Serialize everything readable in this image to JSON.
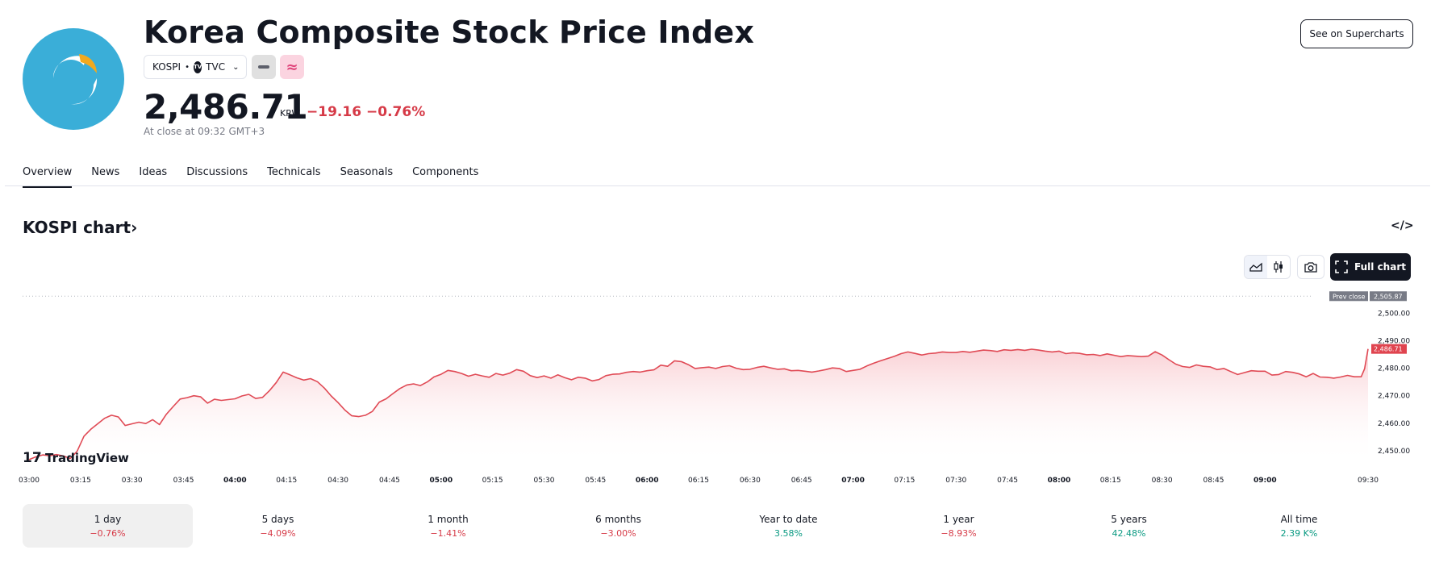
{
  "header": {
    "title": "Korea Composite Stock Price Index",
    "symbol": "KOSPI",
    "separator": "•",
    "exchange": "TVC",
    "exchange_badge": "TV",
    "pink_icon": "≈",
    "price": "2,486.71",
    "currency": "KRW",
    "change_abs": "−19.16",
    "change_pct": "−0.76%",
    "close_note": "At close at 09:32 GMT+3",
    "see_supercharts": "See on Supercharts"
  },
  "tabs": [
    {
      "label": "Overview",
      "active": true
    },
    {
      "label": "News"
    },
    {
      "label": "Ideas"
    },
    {
      "label": "Discussions"
    },
    {
      "label": "Technicals"
    },
    {
      "label": "Seasonals"
    },
    {
      "label": "Components"
    }
  ],
  "chart_section": {
    "title": "KOSPI chart",
    "title_arrow": "›",
    "embed_icon": "</>",
    "full_chart_label": "Full chart",
    "tradingview_label": "TradingView",
    "tradingview_mark": "17"
  },
  "colors": {
    "line": "#e04a55",
    "fill_top": "#f9c9ce",
    "prev_close_bg": "#787b86",
    "price_bg": "#e0444f"
  },
  "chart_data": {
    "type": "area",
    "title": "KOSPI chart",
    "ylim": [
      2445,
      2508
    ],
    "yticks": [
      "2,450.00",
      "2,460.00",
      "2,470.00",
      "2,480.00",
      "2,490.00",
      "2,500.00"
    ],
    "prev_close": 2505.87,
    "prev_close_label": "Prev close",
    "prev_close_text": "2,505.87",
    "last_price": 2486.71,
    "last_price_text": "2,486.71",
    "x_minutes_range": [
      0,
      390
    ],
    "xticks": [
      {
        "label": "03:00",
        "m": 0,
        "bold": false
      },
      {
        "label": "03:15",
        "m": 15,
        "bold": false
      },
      {
        "label": "03:30",
        "m": 30,
        "bold": false
      },
      {
        "label": "03:45",
        "m": 45,
        "bold": false
      },
      {
        "label": "04:00",
        "m": 60,
        "bold": true
      },
      {
        "label": "04:15",
        "m": 75,
        "bold": false
      },
      {
        "label": "04:30",
        "m": 90,
        "bold": false
      },
      {
        "label": "04:45",
        "m": 105,
        "bold": false
      },
      {
        "label": "05:00",
        "m": 120,
        "bold": true
      },
      {
        "label": "05:15",
        "m": 135,
        "bold": false
      },
      {
        "label": "05:30",
        "m": 150,
        "bold": false
      },
      {
        "label": "05:45",
        "m": 165,
        "bold": false
      },
      {
        "label": "06:00",
        "m": 180,
        "bold": true
      },
      {
        "label": "06:15",
        "m": 195,
        "bold": false
      },
      {
        "label": "06:30",
        "m": 210,
        "bold": false
      },
      {
        "label": "06:45",
        "m": 225,
        "bold": false
      },
      {
        "label": "07:00",
        "m": 240,
        "bold": true
      },
      {
        "label": "07:15",
        "m": 255,
        "bold": false
      },
      {
        "label": "07:30",
        "m": 270,
        "bold": false
      },
      {
        "label": "07:45",
        "m": 285,
        "bold": false
      },
      {
        "label": "08:00",
        "m": 300,
        "bold": true
      },
      {
        "label": "08:15",
        "m": 315,
        "bold": false
      },
      {
        "label": "08:30",
        "m": 330,
        "bold": false
      },
      {
        "label": "08:45",
        "m": 345,
        "bold": false
      },
      {
        "label": "09:00",
        "m": 360,
        "bold": true
      },
      {
        "label": "09:30",
        "m": 390,
        "bold": false
      }
    ],
    "points": [
      [
        0,
        2446.5
      ],
      [
        2,
        2447.5
      ],
      [
        4,
        2448.2
      ],
      [
        6,
        2447.9
      ],
      [
        8,
        2448.3
      ],
      [
        10,
        2447.8
      ],
      [
        12,
        2446.9
      ],
      [
        14,
        2449.5
      ],
      [
        16,
        2455.0
      ],
      [
        18,
        2457.5
      ],
      [
        20,
        2459.5
      ],
      [
        22,
        2461.5
      ],
      [
        24,
        2462.6
      ],
      [
        26,
        2462.0
      ],
      [
        28,
        2458.9
      ],
      [
        30,
        2459.5
      ],
      [
        32,
        2460.1
      ],
      [
        34,
        2459.6
      ],
      [
        36,
        2461.0
      ],
      [
        38,
        2459.2
      ],
      [
        40,
        2463.0
      ],
      [
        42,
        2465.8
      ],
      [
        44,
        2468.5
      ],
      [
        46,
        2469.0
      ],
      [
        48,
        2469.7
      ],
      [
        50,
        2469.3
      ],
      [
        52,
        2467.0
      ],
      [
        54,
        2468.4
      ],
      [
        56,
        2468.0
      ],
      [
        58,
        2468.3
      ],
      [
        60,
        2468.6
      ],
      [
        62,
        2469.6
      ],
      [
        64,
        2470.2
      ],
      [
        66,
        2468.7
      ],
      [
        68,
        2469.1
      ],
      [
        70,
        2471.5
      ],
      [
        72,
        2474.5
      ],
      [
        74,
        2478.3
      ],
      [
        76,
        2477.3
      ],
      [
        78,
        2476.2
      ],
      [
        80,
        2475.4
      ],
      [
        82,
        2475.9
      ],
      [
        84,
        2474.8
      ],
      [
        86,
        2472.5
      ],
      [
        88,
        2469.6
      ],
      [
        90,
        2467.2
      ],
      [
        92,
        2464.5
      ],
      [
        94,
        2462.4
      ],
      [
        96,
        2462.1
      ],
      [
        98,
        2462.6
      ],
      [
        100,
        2464.0
      ],
      [
        102,
        2467.4
      ],
      [
        104,
        2468.6
      ],
      [
        106,
        2470.5
      ],
      [
        108,
        2472.3
      ],
      [
        110,
        2473.6
      ],
      [
        112,
        2474.0
      ],
      [
        114,
        2473.4
      ],
      [
        116,
        2474.7
      ],
      [
        118,
        2476.6
      ],
      [
        120,
        2477.5
      ],
      [
        122,
        2478.9
      ],
      [
        124,
        2478.5
      ],
      [
        126,
        2477.8
      ],
      [
        128,
        2476.8
      ],
      [
        130,
        2477.5
      ],
      [
        132,
        2476.9
      ],
      [
        134,
        2476.4
      ],
      [
        136,
        2477.8
      ],
      [
        138,
        2477.2
      ],
      [
        140,
        2477.9
      ],
      [
        142,
        2479.2
      ],
      [
        144,
        2478.6
      ],
      [
        146,
        2477.0
      ],
      [
        148,
        2476.3
      ],
      [
        150,
        2476.9
      ],
      [
        152,
        2476.1
      ],
      [
        154,
        2477.3
      ],
      [
        156,
        2476.3
      ],
      [
        158,
        2475.5
      ],
      [
        160,
        2476.4
      ],
      [
        162,
        2476.1
      ],
      [
        164,
        2475.1
      ],
      [
        166,
        2475.6
      ],
      [
        168,
        2477.0
      ],
      [
        170,
        2477.5
      ],
      [
        172,
        2477.6
      ],
      [
        174,
        2478.2
      ],
      [
        176,
        2478.5
      ],
      [
        178,
        2478.3
      ],
      [
        180,
        2478.8
      ],
      [
        182,
        2479.1
      ],
      [
        184,
        2480.8
      ],
      [
        186,
        2480.4
      ],
      [
        188,
        2482.4
      ],
      [
        190,
        2482.1
      ],
      [
        192,
        2481.0
      ],
      [
        194,
        2479.6
      ],
      [
        196,
        2479.9
      ],
      [
        198,
        2480.1
      ],
      [
        200,
        2479.6
      ],
      [
        202,
        2480.3
      ],
      [
        204,
        2480.6
      ],
      [
        206,
        2479.7
      ],
      [
        208,
        2479.2
      ],
      [
        210,
        2479.3
      ],
      [
        212,
        2480.0
      ],
      [
        214,
        2480.4
      ],
      [
        216,
        2479.8
      ],
      [
        218,
        2479.3
      ],
      [
        220,
        2479.5
      ],
      [
        222,
        2478.8
      ],
      [
        224,
        2478.9
      ],
      [
        226,
        2478.6
      ],
      [
        228,
        2478.3
      ],
      [
        230,
        2478.7
      ],
      [
        232,
        2479.2
      ],
      [
        234,
        2479.8
      ],
      [
        236,
        2479.6
      ],
      [
        238,
        2478.5
      ],
      [
        240,
        2478.9
      ],
      [
        242,
        2479.3
      ],
      [
        244,
        2480.5
      ],
      [
        246,
        2481.5
      ],
      [
        248,
        2482.4
      ],
      [
        250,
        2483.2
      ],
      [
        252,
        2484.0
      ],
      [
        254,
        2485.0
      ],
      [
        256,
        2485.6
      ],
      [
        258,
        2485.1
      ],
      [
        260,
        2484.5
      ],
      [
        262,
        2485.0
      ],
      [
        264,
        2485.2
      ],
      [
        266,
        2485.6
      ],
      [
        268,
        2485.4
      ],
      [
        270,
        2485.4
      ],
      [
        272,
        2485.8
      ],
      [
        274,
        2485.5
      ],
      [
        276,
        2485.9
      ],
      [
        278,
        2486.3
      ],
      [
        280,
        2486.1
      ],
      [
        282,
        2485.8
      ],
      [
        284,
        2486.4
      ],
      [
        286,
        2486.2
      ],
      [
        288,
        2486.5
      ],
      [
        290,
        2486.2
      ],
      [
        292,
        2486.6
      ],
      [
        294,
        2486.3
      ],
      [
        296,
        2485.9
      ],
      [
        298,
        2485.6
      ],
      [
        300,
        2485.9
      ],
      [
        302,
        2485.0
      ],
      [
        304,
        2485.3
      ],
      [
        306,
        2485.1
      ],
      [
        308,
        2484.6
      ],
      [
        310,
        2484.7
      ],
      [
        312,
        2484.3
      ],
      [
        314,
        2484.9
      ],
      [
        316,
        2484.4
      ],
      [
        318,
        2483.9
      ],
      [
        320,
        2484.3
      ],
      [
        322,
        2484.1
      ],
      [
        324,
        2483.9
      ],
      [
        326,
        2484.1
      ],
      [
        328,
        2485.7
      ],
      [
        330,
        2484.5
      ],
      [
        332,
        2482.8
      ],
      [
        334,
        2481.2
      ],
      [
        336,
        2480.3
      ],
      [
        338,
        2480.0
      ],
      [
        340,
        2480.9
      ],
      [
        342,
        2480.4
      ],
      [
        344,
        2480.2
      ],
      [
        346,
        2479.2
      ],
      [
        348,
        2479.6
      ],
      [
        350,
        2478.5
      ],
      [
        352,
        2477.4
      ],
      [
        354,
        2478.1
      ],
      [
        356,
        2478.8
      ],
      [
        358,
        2478.6
      ],
      [
        360,
        2478.6
      ],
      [
        362,
        2477.2
      ],
      [
        364,
        2477.4
      ],
      [
        366,
        2478.5
      ],
      [
        368,
        2478.2
      ],
      [
        370,
        2477.6
      ],
      [
        372,
        2476.6
      ],
      [
        374,
        2477.8
      ],
      [
        376,
        2476.5
      ],
      [
        378,
        2476.4
      ],
      [
        380,
        2476.1
      ],
      [
        382,
        2476.5
      ],
      [
        384,
        2477.1
      ],
      [
        386,
        2476.6
      ],
      [
        388,
        2476.6
      ],
      [
        389,
        2479.5
      ],
      [
        390,
        2486.71
      ]
    ]
  },
  "periods": [
    {
      "label": "1 day",
      "value": "−0.76%",
      "sign": "neg",
      "active": true
    },
    {
      "label": "5 days",
      "value": "−4.09%",
      "sign": "neg"
    },
    {
      "label": "1 month",
      "value": "−1.41%",
      "sign": "neg"
    },
    {
      "label": "6 months",
      "value": "−3.00%",
      "sign": "neg"
    },
    {
      "label": "Year to date",
      "value": "3.58%",
      "sign": "pos"
    },
    {
      "label": "1 year",
      "value": "−8.93%",
      "sign": "neg"
    },
    {
      "label": "5 years",
      "value": "42.48%",
      "sign": "pos"
    },
    {
      "label": "All time",
      "value": "2.39 K%",
      "sign": "pos"
    }
  ]
}
